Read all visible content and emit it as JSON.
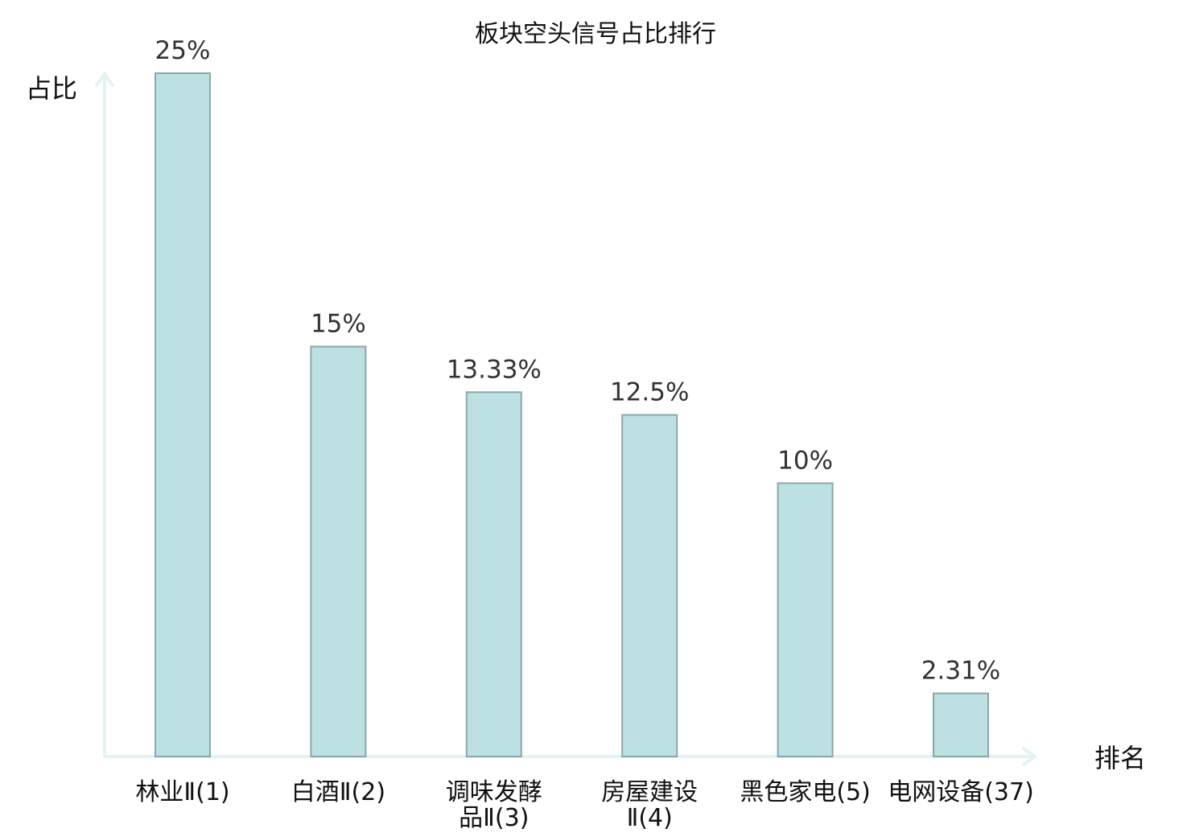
{
  "chart_data": {
    "type": "bar",
    "title": "板块空头信号占比排行",
    "ylabel": "占比",
    "xlabel": "排名",
    "categories": [
      "林业Ⅱ(1)",
      "白酒Ⅱ(2)",
      "调味发酵品Ⅱ(3)",
      "房屋建设Ⅱ(4)",
      "黑色家电(5)",
      "电网设备(37)"
    ],
    "category_lines": [
      [
        "林业Ⅱ(1)"
      ],
      [
        "白酒Ⅱ(2)"
      ],
      [
        "调味发酵",
        "品Ⅱ(3)"
      ],
      [
        "房屋建设",
        "Ⅱ(4)"
      ],
      [
        "黑色家电(5)"
      ],
      [
        "电网设备(37)"
      ]
    ],
    "values": [
      25,
      15,
      13.33,
      12.5,
      10,
      2.31
    ],
    "value_labels": [
      "25%",
      "15%",
      "13.33%",
      "12.5%",
      "10%",
      "2.31%"
    ],
    "ylim": [
      0,
      25
    ],
    "grid": false,
    "highlight_category_index": 5,
    "colors": {
      "bar_fill": "#bde0e3",
      "bar_stroke": "#8aa8aa",
      "axis": "#e2f3f1",
      "highlight_text": "#e8302a",
      "text": "#111111",
      "value_text": "#333333"
    }
  }
}
